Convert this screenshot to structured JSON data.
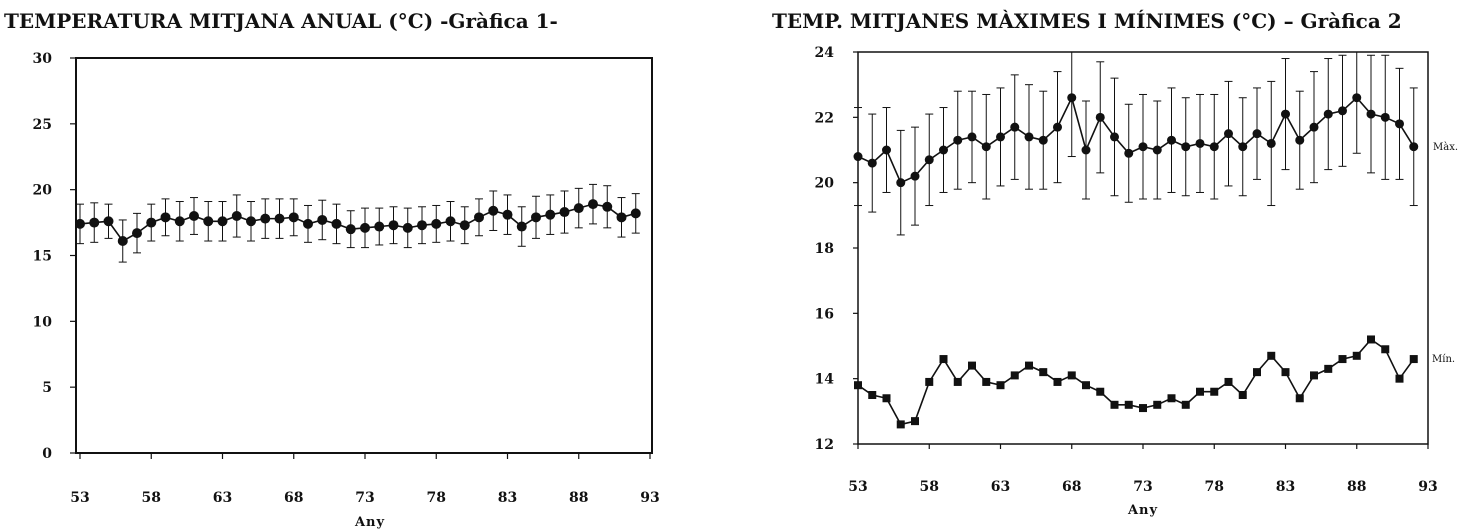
{
  "chart_data": [
    {
      "type": "line",
      "title": "TEMPERATURA MITJANA ANUAL (°C) -Gràfica 1-",
      "xlabel": "Any",
      "ylabel": "",
      "xlim": [
        53,
        93
      ],
      "ylim": [
        0,
        30
      ],
      "xticks": [
        "53",
        "58",
        "63",
        "68",
        "73",
        "78",
        "83",
        "88",
        "93"
      ],
      "yticks": [
        "0",
        "5",
        "10",
        "15",
        "20",
        "25",
        "30"
      ],
      "grid": false,
      "error_bars": true,
      "series": [
        {
          "marker": "circle",
          "x": [
            53,
            54,
            55,
            56,
            57,
            58,
            59,
            60,
            61,
            62,
            63,
            64,
            65,
            66,
            67,
            68,
            69,
            70,
            71,
            72,
            73,
            74,
            75,
            76,
            77,
            78,
            79,
            80,
            81,
            82,
            83,
            84,
            85,
            86,
            87,
            88,
            89,
            90,
            91,
            92
          ],
          "values": [
            17.4,
            17.5,
            17.6,
            16.1,
            16.7,
            17.5,
            17.9,
            17.6,
            18.0,
            17.6,
            17.6,
            18.0,
            17.6,
            17.8,
            17.8,
            17.9,
            17.4,
            17.7,
            17.4,
            17.0,
            17.1,
            17.2,
            17.3,
            17.1,
            17.3,
            17.4,
            17.6,
            17.3,
            17.9,
            18.4,
            18.1,
            17.2,
            17.9,
            18.1,
            18.3,
            18.6,
            18.9,
            18.7,
            17.9,
            18.2
          ],
          "errors": [
            1.5,
            1.5,
            1.3,
            1.6,
            1.5,
            1.4,
            1.4,
            1.5,
            1.4,
            1.5,
            1.5,
            1.6,
            1.5,
            1.5,
            1.5,
            1.4,
            1.4,
            1.5,
            1.5,
            1.4,
            1.5,
            1.4,
            1.4,
            1.5,
            1.4,
            1.4,
            1.5,
            1.4,
            1.4,
            1.5,
            1.5,
            1.5,
            1.6,
            1.5,
            1.6,
            1.5,
            1.5,
            1.6,
            1.5,
            1.5
          ]
        }
      ]
    },
    {
      "type": "line",
      "title": "TEMP. MITJANES MÀXIMES I MÍNIMES (°C) – Gràfica 2",
      "xlabel": "Any",
      "ylabel": "",
      "xlim": [
        53,
        93
      ],
      "ylim": [
        12,
        24
      ],
      "xticks": [
        "53",
        "58",
        "63",
        "68",
        "73",
        "78",
        "83",
        "88",
        "93"
      ],
      "yticks": [
        "12",
        "14",
        "16",
        "18",
        "20",
        "22",
        "24"
      ],
      "grid": false,
      "error_bars": true,
      "series": [
        {
          "name": "Màx.",
          "marker": "circle",
          "x": [
            53,
            54,
            55,
            56,
            57,
            58,
            59,
            60,
            61,
            62,
            63,
            64,
            65,
            66,
            67,
            68,
            69,
            70,
            71,
            72,
            73,
            74,
            75,
            76,
            77,
            78,
            79,
            80,
            81,
            82,
            83,
            84,
            85,
            86,
            87,
            88,
            89,
            90,
            91,
            92
          ],
          "values": [
            20.8,
            20.6,
            21.0,
            20.0,
            20.2,
            20.7,
            21.0,
            21.3,
            21.4,
            21.1,
            21.4,
            21.7,
            21.4,
            21.3,
            21.7,
            22.6,
            21.0,
            22.0,
            21.4,
            20.9,
            21.1,
            21.0,
            21.3,
            21.1,
            21.2,
            21.1,
            21.5,
            21.1,
            21.5,
            21.2,
            22.1,
            21.3,
            21.7,
            22.1,
            22.2,
            22.6,
            22.1,
            22.0,
            21.8,
            21.1
          ],
          "errors": [
            1.5,
            1.5,
            1.3,
            1.6,
            1.5,
            1.4,
            1.3,
            1.5,
            1.4,
            1.6,
            1.5,
            1.6,
            1.6,
            1.5,
            1.7,
            1.8,
            1.5,
            1.7,
            1.8,
            1.5,
            1.6,
            1.5,
            1.6,
            1.5,
            1.5,
            1.6,
            1.6,
            1.5,
            1.4,
            1.9,
            1.7,
            1.5,
            1.7,
            1.7,
            1.7,
            1.7,
            1.8,
            1.9,
            1.7,
            1.8
          ]
        },
        {
          "name": "Mín.",
          "marker": "square",
          "x": [
            53,
            54,
            55,
            56,
            57,
            58,
            59,
            60,
            61,
            62,
            63,
            64,
            65,
            66,
            67,
            68,
            69,
            70,
            71,
            72,
            73,
            74,
            75,
            76,
            77,
            78,
            79,
            80,
            81,
            82,
            83,
            84,
            85,
            86,
            87,
            88,
            89,
            90,
            91,
            92
          ],
          "values": [
            13.8,
            13.5,
            13.4,
            12.6,
            12.7,
            13.9,
            14.6,
            13.9,
            14.4,
            13.9,
            13.8,
            14.1,
            14.4,
            14.2,
            13.9,
            14.1,
            13.8,
            13.6,
            13.2,
            13.2,
            13.1,
            13.2,
            13.4,
            13.2,
            13.6,
            13.6,
            13.9,
            13.5,
            14.2,
            14.7,
            14.2,
            13.4,
            14.1,
            14.3,
            14.6,
            14.7,
            15.2,
            14.9,
            14.0,
            14.6
          ]
        }
      ]
    }
  ]
}
